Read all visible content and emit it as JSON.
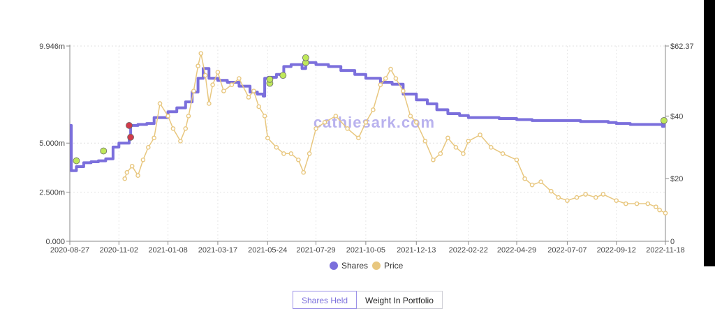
{
  "chart_data": {
    "type": "line",
    "watermark": "cathiesark.com",
    "x_ticks": [
      "2020-08-27",
      "2020-11-02",
      "2021-01-08",
      "2021-03-17",
      "2021-05-24",
      "2021-07-29",
      "2021-10-05",
      "2021-12-13",
      "2022-02-22",
      "2022-04-29",
      "2022-07-07",
      "2022-09-12",
      "2022-11-18"
    ],
    "y_left_ticks": [
      "0.000",
      "2.500m",
      "5.000m",
      "9.946m"
    ],
    "y_left_tick_values": [
      0,
      2.5,
      5.0,
      9.946
    ],
    "y_left_lim": [
      0,
      9.946
    ],
    "y_right_ticks": [
      "0",
      "$20",
      "$40",
      "$62.37"
    ],
    "y_right_tick_values": [
      0,
      20,
      40,
      62.37
    ],
    "y_right_lim": [
      0,
      62.37
    ],
    "grid": true,
    "legend": {
      "placement": "bottom-center"
    },
    "series": [
      {
        "name": "Shares",
        "axis": "left",
        "color": "#7b6fdc",
        "x": [
          "2020-08-27",
          "2020-08-29",
          "2020-09-05",
          "2020-09-15",
          "2020-09-25",
          "2020-10-05",
          "2020-10-15",
          "2020-10-25",
          "2020-11-02",
          "2020-11-10",
          "2020-11-16",
          "2020-11-18",
          "2020-11-28",
          "2020-12-10",
          "2020-12-20",
          "2021-01-01",
          "2021-01-08",
          "2021-01-20",
          "2021-02-01",
          "2021-02-10",
          "2021-02-18",
          "2021-02-25",
          "2021-03-05",
          "2021-03-17",
          "2021-03-30",
          "2021-04-15",
          "2021-04-30",
          "2021-05-10",
          "2021-05-18",
          "2021-05-20",
          "2021-05-25",
          "2021-06-05",
          "2021-06-14",
          "2021-06-15",
          "2021-06-25",
          "2021-07-05",
          "2021-07-10",
          "2021-07-15",
          "2021-07-29",
          "2021-08-15",
          "2021-09-01",
          "2021-09-20",
          "2021-10-05",
          "2021-10-25",
          "2021-11-10",
          "2021-11-25",
          "2021-12-13",
          "2021-12-28",
          "2022-01-10",
          "2022-01-25",
          "2022-02-10",
          "2022-02-22",
          "2022-03-15",
          "2022-04-05",
          "2022-04-29",
          "2022-05-20",
          "2022-06-10",
          "2022-07-07",
          "2022-07-25",
          "2022-08-15",
          "2022-09-01",
          "2022-09-12",
          "2022-10-01",
          "2022-10-20",
          "2022-11-05",
          "2022-11-14",
          "2022-11-16",
          "2022-11-18"
        ],
        "values": [
          5.9,
          3.6,
          3.8,
          4.0,
          4.05,
          4.1,
          4.2,
          4.8,
          5.0,
          5.0,
          5.2,
          5.9,
          5.95,
          6.0,
          6.3,
          6.3,
          6.6,
          6.8,
          7.1,
          7.6,
          8.3,
          8.8,
          8.3,
          8.2,
          8.1,
          7.9,
          7.6,
          7.5,
          7.4,
          8.3,
          8.35,
          8.5,
          8.4,
          8.9,
          9.0,
          9.0,
          8.8,
          9.1,
          9.0,
          8.9,
          8.7,
          8.5,
          8.3,
          8.1,
          8.0,
          7.5,
          7.2,
          7.0,
          6.7,
          6.5,
          6.4,
          6.3,
          6.3,
          6.25,
          6.2,
          6.15,
          6.15,
          6.15,
          6.1,
          6.1,
          6.05,
          6.0,
          5.95,
          5.95,
          5.95,
          5.85,
          6.15,
          6.2
        ]
      },
      {
        "name": "Price",
        "axis": "right",
        "color": "#e8c77f",
        "x": [
          "2020-11-10",
          "2020-11-13",
          "2020-11-20",
          "2020-11-28",
          "2020-12-05",
          "2020-12-12",
          "2020-12-20",
          "2020-12-28",
          "2021-01-08",
          "2021-01-15",
          "2021-01-25",
          "2021-02-01",
          "2021-02-05",
          "2021-02-12",
          "2021-02-18",
          "2021-02-22",
          "2021-02-28",
          "2021-03-05",
          "2021-03-10",
          "2021-03-17",
          "2021-03-25",
          "2021-04-05",
          "2021-04-15",
          "2021-04-28",
          "2021-05-05",
          "2021-05-12",
          "2021-05-20",
          "2021-05-24",
          "2021-06-05",
          "2021-06-15",
          "2021-06-25",
          "2021-07-05",
          "2021-07-12",
          "2021-07-20",
          "2021-07-29",
          "2021-08-10",
          "2021-08-25",
          "2021-09-10",
          "2021-09-25",
          "2021-10-05",
          "2021-10-15",
          "2021-10-25",
          "2021-11-01",
          "2021-11-08",
          "2021-11-15",
          "2021-11-25",
          "2021-12-05",
          "2021-12-13",
          "2021-12-25",
          "2022-01-05",
          "2022-01-15",
          "2022-01-25",
          "2022-02-05",
          "2022-02-15",
          "2022-02-22",
          "2022-03-10",
          "2022-03-25",
          "2022-04-10",
          "2022-04-29",
          "2022-05-10",
          "2022-05-20",
          "2022-06-01",
          "2022-06-15",
          "2022-06-25",
          "2022-07-07",
          "2022-07-20",
          "2022-08-01",
          "2022-08-15",
          "2022-08-25",
          "2022-09-12",
          "2022-09-25",
          "2022-10-10",
          "2022-10-25",
          "2022-11-05",
          "2022-11-10",
          "2022-11-18"
        ],
        "values": [
          20,
          22,
          24,
          21,
          26,
          30,
          33,
          44,
          40,
          36,
          32,
          36,
          40,
          48,
          56,
          60,
          53,
          44,
          50,
          54,
          48,
          50,
          52,
          46,
          48,
          43,
          40,
          33,
          30,
          28,
          28,
          26,
          22,
          28,
          36,
          38,
          40,
          36,
          33,
          38,
          42,
          50,
          52,
          55,
          52,
          48,
          40,
          38,
          32,
          26,
          28,
          33,
          30,
          28,
          32,
          34,
          30,
          28,
          26,
          20,
          18,
          19,
          16,
          14,
          13,
          14,
          15,
          14,
          15,
          13,
          12,
          12,
          12,
          11,
          10,
          9
        ]
      }
    ],
    "markers": [
      {
        "x": "2020-09-05",
        "value": 4.1,
        "color": "#bfe85a"
      },
      {
        "x": "2020-10-12",
        "value": 4.6,
        "color": "#bfe85a"
      },
      {
        "x": "2020-11-16",
        "value": 5.9,
        "color": "#d23b4a"
      },
      {
        "x": "2020-11-18",
        "value": 5.3,
        "color": "#d23b4a"
      },
      {
        "x": "2021-05-27",
        "value": 8.05,
        "color": "#bfe85a"
      },
      {
        "x": "2021-05-27",
        "value": 8.25,
        "color": "#bfe85a"
      },
      {
        "x": "2021-06-14",
        "value": 8.45,
        "color": "#bfe85a"
      },
      {
        "x": "2021-07-15",
        "value": 9.1,
        "color": "#bfe85a"
      },
      {
        "x": "2021-07-15",
        "value": 9.35,
        "color": "#bfe85a"
      },
      {
        "x": "2022-11-16",
        "value": 6.15,
        "color": "#bfe85a"
      }
    ]
  },
  "tabs": [
    {
      "label": "Shares Held",
      "active": true
    },
    {
      "label": "Weight In Portfolio",
      "active": false
    }
  ]
}
